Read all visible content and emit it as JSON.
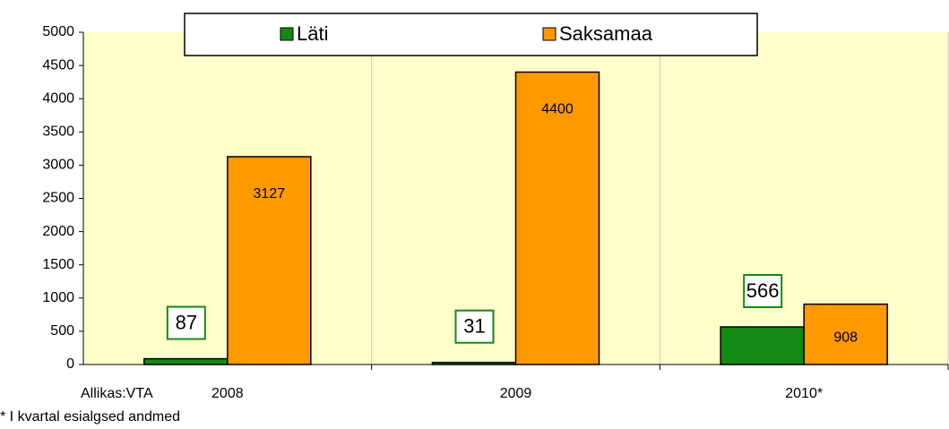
{
  "chart_data": {
    "type": "bar",
    "categories": [
      "2008",
      "2009",
      "2010*"
    ],
    "series": [
      {
        "name": "Läti",
        "color": "#138a13",
        "values": [
          87,
          31,
          566
        ]
      },
      {
        "name": "Saksamaa",
        "color": "#ff9900",
        "values": [
          3127,
          4400,
          908
        ]
      }
    ],
    "ylim": [
      0,
      5000
    ],
    "yticks": [
      0,
      500,
      1000,
      1500,
      2000,
      2500,
      3000,
      3500,
      4000,
      4500,
      5000
    ],
    "annotations": [
      "Allikas:VTA",
      "* I kvartal esialgsed andmed"
    ],
    "legend": "top",
    "background": "#ffffcc"
  }
}
